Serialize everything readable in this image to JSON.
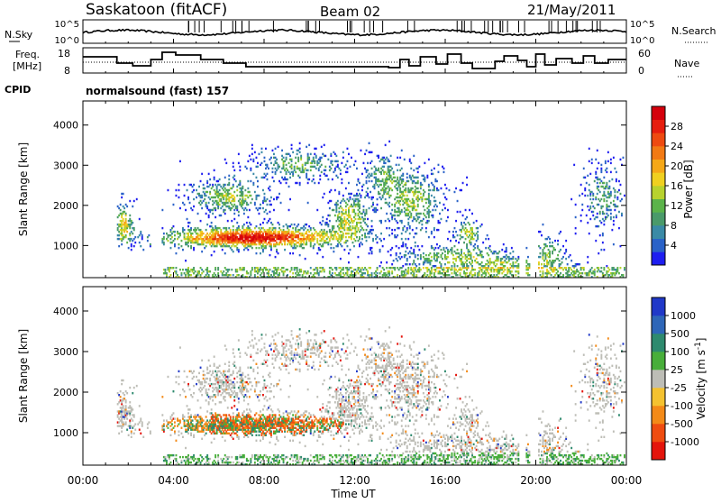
{
  "header": {
    "site": "Saskatoon (fitACF)",
    "beam": "Beam 02",
    "date": "21/May/2011"
  },
  "panels": {
    "nsky_label": "N.Sky",
    "nsearch_label": "N.Search",
    "nsky_ticks": [
      "10^5",
      "10^0"
    ],
    "nsearch_ticks": [
      "10^5",
      "10^0"
    ],
    "freq_label_1": "Freq.",
    "freq_label_2": "[MHz]",
    "freq_ticks": [
      "18",
      "8"
    ],
    "nave_label": "Nave",
    "nave_ticks": [
      "60",
      "0"
    ],
    "cpid_label": "CPID",
    "cpid_value": "normalsound (fast) 157"
  },
  "chart_data": [
    {
      "type": "heatmap",
      "title": "",
      "xlabel": "Time UT",
      "ylabel": "Slant Range [km]",
      "x_ticks": [
        "00:00",
        "04:00",
        "08:00",
        "12:00",
        "16:00",
        "20:00",
        "00:00"
      ],
      "xlim_hours": [
        0,
        24
      ],
      "ylim_km": [
        200,
        4600
      ],
      "y_ticks": [
        1000,
        2000,
        3000,
        4000
      ],
      "colorbar": {
        "label": "Power [dB]",
        "ticks": [
          4,
          8,
          12,
          16,
          20,
          24,
          28
        ],
        "colors": [
          "#1e1ef0",
          "#2a62c8",
          "#3a8aa6",
          "#4a9a6a",
          "#5bb34a",
          "#b8d22e",
          "#f0d020",
          "#f5a818",
          "#f27a14",
          "#ee4a10",
          "#e61e0e",
          "#d4000c"
        ]
      }
    },
    {
      "type": "heatmap",
      "title": "",
      "xlabel": "Time UT",
      "ylabel": "Slant Range [km]",
      "x_ticks": [
        "00:00",
        "04:00",
        "08:00",
        "12:00",
        "16:00",
        "20:00",
        "00:00"
      ],
      "xlim_hours": [
        0,
        24
      ],
      "ylim_km": [
        200,
        4600
      ],
      "y_ticks": [
        1000,
        2000,
        3000,
        4000
      ],
      "colorbar": {
        "label": "Velocity [m s^-1]",
        "ticks": [
          "1000",
          "500",
          "100",
          "25",
          "-25",
          "-100",
          "-500",
          "-1000"
        ],
        "colors": [
          "#2038c8",
          "#2e66b8",
          "#2e8a6e",
          "#48ae3a",
          "#bdbdb6",
          "#f4c230",
          "#f38a18",
          "#ef4c10",
          "#e4140c"
        ]
      }
    }
  ]
}
